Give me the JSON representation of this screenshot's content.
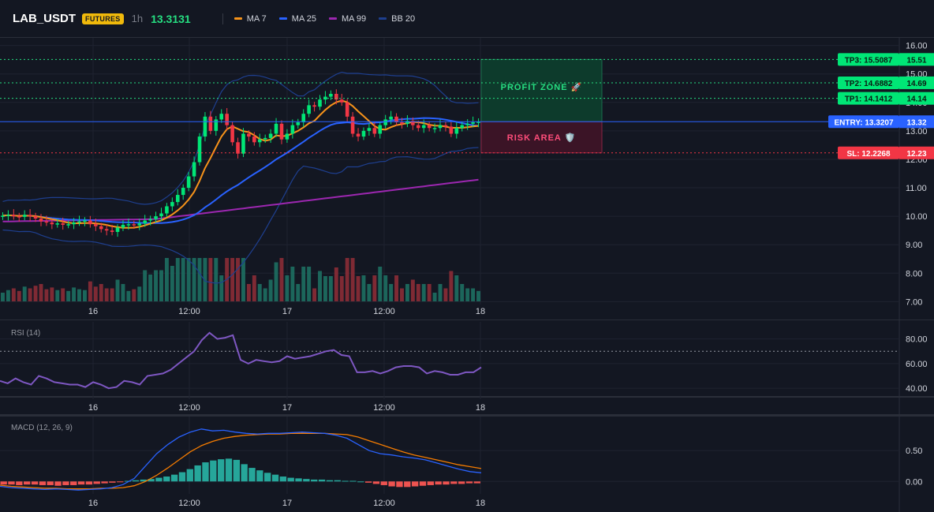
{
  "header": {
    "symbol": "LAB_USDT",
    "badge": "FUTURES",
    "timeframe": "1h",
    "price": "13.3131"
  },
  "legend": [
    {
      "name": "MA 7",
      "color": "#f7931a"
    },
    {
      "name": "MA 25",
      "color": "#2962ff"
    },
    {
      "name": "MA 99",
      "color": "#9c27b0"
    },
    {
      "name": "BB 20",
      "color": "#1e3f8f"
    }
  ],
  "colors": {
    "up": "#26a69a",
    "up_bright": "#00e676",
    "down": "#f23645",
    "rsi": "#7e57c2",
    "macd": "#2962ff",
    "signal": "#f57c00"
  },
  "chart_data": [
    {
      "type": "candlestick",
      "title": "",
      "x_ticks": [
        "16",
        "12:00",
        "17",
        "12:00",
        "18"
      ],
      "y_ticks": [
        "16.00",
        "15.00",
        "14.00",
        "13.00",
        "12.00",
        "11.00",
        "10.00",
        "9.00",
        "8.00",
        "7.00"
      ],
      "ylim": [
        6.9,
        16.1
      ],
      "closes": [
        10.02,
        10.05,
        10.0,
        9.98,
        10.05,
        10.0,
        9.92,
        9.82,
        9.78,
        9.72,
        9.75,
        9.7,
        9.72,
        9.78,
        9.82,
        9.85,
        9.72,
        9.65,
        9.55,
        9.5,
        9.45,
        9.6,
        9.7,
        9.72,
        9.68,
        9.75,
        9.85,
        9.9,
        10.0,
        10.1,
        10.35,
        10.5,
        10.75,
        11.0,
        11.4,
        11.9,
        12.8,
        13.5,
        13.0,
        13.4,
        13.6,
        13.2,
        12.6,
        12.2,
        12.9,
        12.8,
        12.6,
        12.7,
        12.75,
        12.9,
        13.25,
        12.7,
        12.9,
        13.2,
        13.3,
        13.6,
        13.9,
        13.85,
        14.1,
        14.2,
        14.3,
        14.1,
        14.0,
        13.5,
        12.9,
        12.8,
        13.0,
        13.1,
        12.9,
        13.2,
        13.4,
        13.5,
        13.3,
        13.25,
        13.35,
        13.2,
        13.1,
        13.2,
        13.1,
        13.1,
        13.2,
        13.15,
        12.9,
        13.1,
        13.2,
        13.25,
        13.3,
        13.32
      ],
      "tp_sl": [
        {
          "label": "TP3: 15.5087",
          "axis": "15.51",
          "value": 15.5087
        },
        {
          "label": "TP2: 14.6882",
          "axis": "14.69",
          "value": 14.6882
        },
        {
          "label": "TP1: 14.1412",
          "axis": "14.14",
          "value": 14.1412
        },
        {
          "label": "ENTRY: 13.3207",
          "axis": "13.32",
          "value": 13.3207
        },
        {
          "label": "SL: 12.2268",
          "axis": "12.23",
          "value": 12.2268
        }
      ],
      "zones": {
        "profit": "PROFIT ZONE 🚀",
        "risk": "RISK AREA 🛡️"
      }
    },
    {
      "type": "line",
      "name": "RSI (14)",
      "y_ticks": [
        "80.00",
        "60.00",
        "40.00"
      ],
      "ylim": [
        35,
        90
      ],
      "overbought": 70,
      "values": [
        46,
        44,
        48,
        45,
        43,
        50,
        48,
        45,
        44,
        43,
        43,
        41,
        45,
        43,
        40,
        41,
        46,
        45,
        43,
        50,
        51,
        52,
        55,
        60,
        65,
        70,
        79,
        85,
        80,
        81,
        83,
        63,
        60,
        63,
        62,
        61,
        62,
        66,
        64,
        65,
        66,
        68,
        70,
        71,
        67,
        66,
        53,
        53,
        54,
        52,
        54,
        57,
        58,
        58,
        57,
        52,
        54,
        53,
        51,
        51,
        53,
        53,
        57
      ]
    },
    {
      "type": "bar+line",
      "name": "MACD (12, 26, 9)",
      "y_ticks": [
        "0.50",
        "0.00"
      ],
      "ylim": [
        -0.15,
        0.95
      ],
      "macd": [
        -0.08,
        -0.1,
        -0.11,
        -0.12,
        -0.13,
        -0.12,
        -0.13,
        -0.14,
        -0.13,
        -0.12,
        -0.1,
        -0.05,
        0.05,
        0.25,
        0.45,
        0.6,
        0.72,
        0.8,
        0.85,
        0.82,
        0.83,
        0.8,
        0.78,
        0.77,
        0.78,
        0.78,
        0.79,
        0.8,
        0.79,
        0.78,
        0.75,
        0.7,
        0.6,
        0.5,
        0.45,
        0.43,
        0.4,
        0.38,
        0.35,
        0.3,
        0.25,
        0.2,
        0.16,
        0.14
      ],
      "signal": [
        -0.06,
        -0.08,
        -0.09,
        -0.1,
        -0.11,
        -0.11,
        -0.12,
        -0.12,
        -0.12,
        -0.11,
        -0.11,
        -0.1,
        -0.07,
        0.0,
        0.1,
        0.22,
        0.35,
        0.48,
        0.58,
        0.65,
        0.7,
        0.73,
        0.75,
        0.76,
        0.77,
        0.77,
        0.78,
        0.78,
        0.78,
        0.78,
        0.77,
        0.76,
        0.72,
        0.66,
        0.6,
        0.54,
        0.48,
        0.43,
        0.39,
        0.35,
        0.31,
        0.27,
        0.24,
        0.21
      ],
      "hist": [
        -0.05,
        -0.05,
        -0.06,
        -0.05,
        -0.05,
        -0.06,
        -0.06,
        -0.07,
        -0.06,
        -0.06,
        -0.05,
        -0.05,
        -0.04,
        -0.03,
        -0.02,
        -0.01,
        0.01,
        0.02,
        0.03,
        0.04,
        0.06,
        0.08,
        0.11,
        0.15,
        0.2,
        0.26,
        0.31,
        0.34,
        0.36,
        0.37,
        0.35,
        0.28,
        0.22,
        0.18,
        0.14,
        0.11,
        0.08,
        0.06,
        0.05,
        0.04,
        0.03,
        0.03,
        0.02,
        0.02,
        0.01,
        0.01,
        0.0,
        -0.02,
        -0.04,
        -0.06,
        -0.08,
        -0.09,
        -0.09,
        -0.08,
        -0.07,
        -0.06,
        -0.05,
        -0.05,
        -0.04,
        -0.04,
        -0.03,
        -0.03
      ]
    }
  ]
}
